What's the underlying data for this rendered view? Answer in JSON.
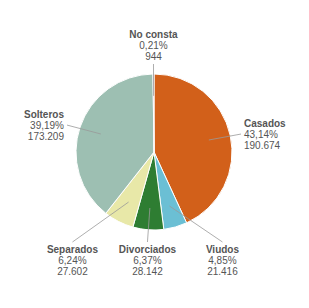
{
  "chart_data": {
    "type": "pie",
    "categories": [
      "Casados",
      "Viudos",
      "Divorciados",
      "Separados",
      "Solteros",
      "No consta"
    ],
    "values": [
      43.14,
      4.85,
      6.37,
      6.24,
      39.19,
      0.21
    ],
    "value_labels": [
      "43,14%",
      "4,85%",
      "6,37%",
      "6,24%",
      "39,19%",
      "0,21%"
    ],
    "counts": [
      190674,
      21416,
      28142,
      27602,
      173209,
      944
    ],
    "count_labels": [
      "190.674",
      "21.416",
      "28.142",
      "27.602",
      "173.209",
      "944"
    ],
    "colors": [
      "#d2601a",
      "#6bbfd4",
      "#2e7d32",
      "#e8e8a8",
      "#9dbfb2",
      "#9b2d8e"
    ],
    "data_labels": true
  }
}
